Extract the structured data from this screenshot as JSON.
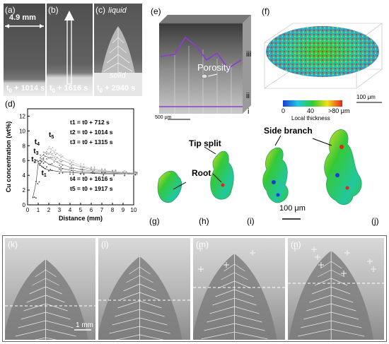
{
  "top_panels": {
    "a": {
      "label": "(a)",
      "time": "t0 + 1014 s",
      "scale": "4.9 mm"
    },
    "b": {
      "label": "(b)",
      "time": "t0 + 1616 s"
    },
    "c": {
      "label": "(c)",
      "time": "t0 + 2940 s",
      "liquid": "liquid",
      "solid": "solid"
    }
  },
  "chart_panel": {
    "label": "(d)",
    "chart_data": {
      "type": "scatter",
      "xlabel": "Distance (mm)",
      "ylabel": "Cu concentration (wt%)",
      "xlim": [
        0,
        10
      ],
      "ylim": [
        0,
        13
      ],
      "xticks": [
        "0",
        "1",
        "2",
        "3",
        "4",
        "5",
        "6",
        "7",
        "8",
        "9",
        "10"
      ],
      "yticks": [
        "0",
        "2",
        "4",
        "6",
        "8",
        "10",
        "12"
      ],
      "series_labels": [
        "t1",
        "t2",
        "t3",
        "t4",
        "t5"
      ],
      "legend": [
        "t1 = t0 + 712 s",
        "t2 = t0 + 1014 s",
        "t3 = t0 + 1315 s",
        "t4 = t0 + 1616 s",
        "t5 = t0 + 1917 s"
      ],
      "series": [
        {
          "name": "t1",
          "x": [
            0.5,
            0.8,
            1.0,
            1.2,
            1.5,
            2,
            3,
            4,
            5,
            6,
            7,
            8,
            9,
            10
          ],
          "values": [
            1,
            3,
            5.6,
            5.4,
            5.0,
            4.7,
            4.5,
            4.4,
            4.3,
            4.3,
            4.2,
            4.2,
            4.2,
            4.2
          ]
        },
        {
          "name": "t2",
          "x": [
            0.9,
            1.2,
            1.5,
            2,
            3,
            4,
            5,
            6,
            7,
            8,
            9,
            10
          ],
          "values": [
            5.8,
            6.1,
            6.0,
            5.5,
            5.0,
            4.7,
            4.5,
            4.4,
            4.3,
            4.3,
            4.2,
            4.2
          ]
        },
        {
          "name": "t3",
          "x": [
            1.2,
            1.5,
            2,
            2.5,
            3,
            4,
            5,
            6,
            7,
            8,
            9,
            10
          ],
          "values": [
            6.5,
            6.7,
            6.4,
            6.0,
            5.6,
            5.1,
            4.8,
            4.6,
            4.5,
            4.4,
            4.3,
            4.3
          ]
        },
        {
          "name": "t4",
          "x": [
            1.5,
            2,
            2.5,
            3,
            4,
            5,
            6,
            7,
            8,
            9,
            10
          ],
          "values": [
            7.1,
            7.0,
            6.6,
            6.2,
            5.6,
            5.1,
            4.8,
            4.6,
            4.5,
            4.4,
            4.3
          ]
        },
        {
          "name": "t5",
          "x": [
            1.9,
            2.2,
            2.5,
            3,
            4,
            5,
            6,
            7,
            8,
            9,
            10
          ],
          "values": [
            7.7,
            7.5,
            7.2,
            6.7,
            5.9,
            5.3,
            4.9,
            4.7,
            4.5,
            4.4,
            4.3
          ]
        }
      ]
    }
  },
  "panel_e": {
    "label": "(e)",
    "porosity": "Porosity",
    "iii": "iii",
    "ii": "ii",
    "i": "i",
    "scale": "500 μm"
  },
  "panel_f": {
    "label": "(f)",
    "scale": "100 μm",
    "colorbar_ticks": [
      "0",
      "40",
      ">80 μm"
    ],
    "colorbar_title": "Local thickness",
    "colors": [
      "#1b3bd6",
      "#21c7e0",
      "#35c936",
      "#f2e01c",
      "#e8231a"
    ]
  },
  "small_panels": {
    "g": "(g)",
    "h": "(h)",
    "i": "(i)",
    "j": "(j)",
    "tip_split": "Tip split",
    "root": "Root",
    "side_branch": "Side branch",
    "scale": "100 μm"
  },
  "bottom_panels": {
    "k": "(k)",
    "l": "(l)",
    "m": "(m)",
    "n": "(n)",
    "scale": "1 mm"
  }
}
